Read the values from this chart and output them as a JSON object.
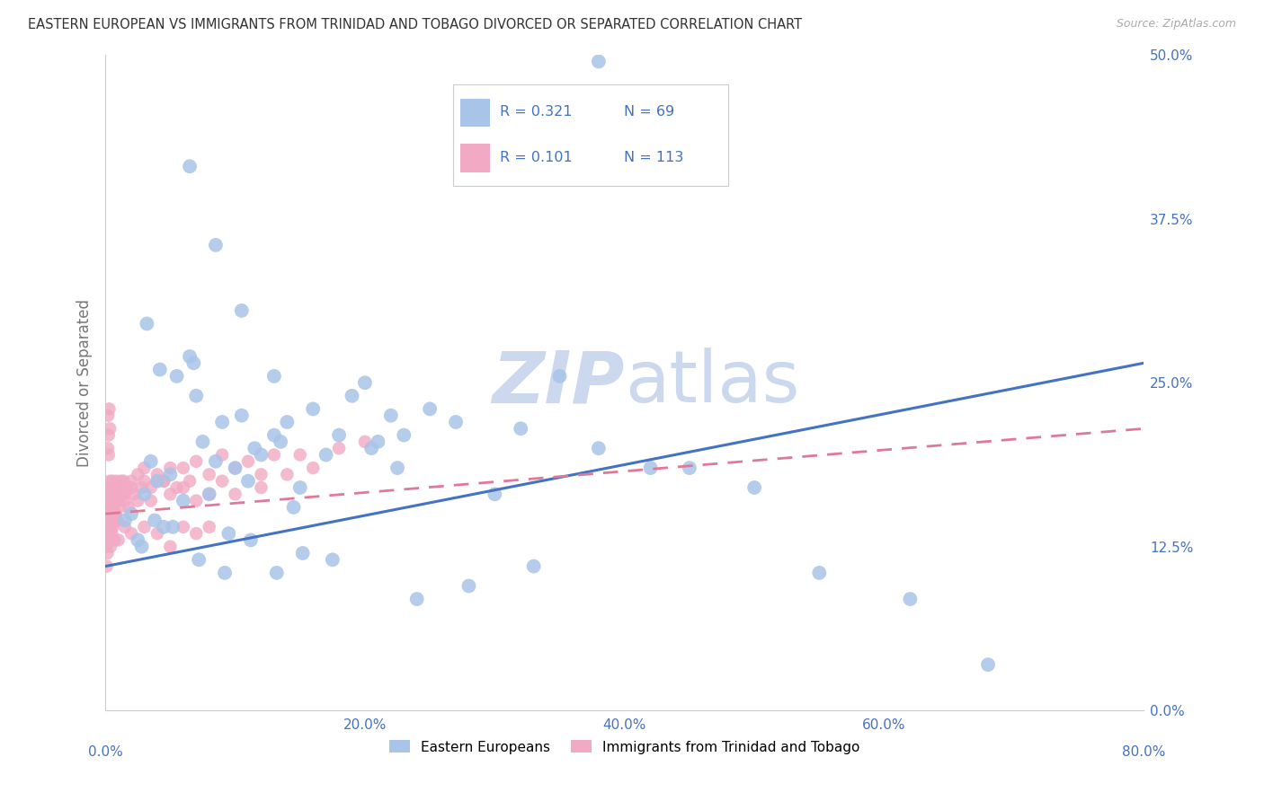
{
  "title": "EASTERN EUROPEAN VS IMMIGRANTS FROM TRINIDAD AND TOBAGO DIVORCED OR SEPARATED CORRELATION CHART",
  "source": "Source: ZipAtlas.com",
  "ylabel": "Divorced or Separated",
  "legend_blue_r": "0.321",
  "legend_blue_n": "69",
  "legend_pink_r": "0.101",
  "legend_pink_n": "113",
  "legend_blue_label": "Eastern Europeans",
  "legend_pink_label": "Immigrants from Trinidad and Tobago",
  "blue_color": "#a8c4e8",
  "pink_color": "#f2aac4",
  "blue_line_color": "#4472c4",
  "pink_line_color": "#e07898",
  "watermark_zip": "ZIP",
  "watermark_atlas": "atlas",
  "watermark_color": "#ccd8ee",
  "background_color": "#ffffff",
  "xlim": [
    0,
    80
  ],
  "ylim": [
    0,
    50
  ],
  "xticks": [
    0,
    20,
    40,
    60,
    80
  ],
  "yticks": [
    0,
    12.5,
    25.0,
    37.5,
    50.0
  ],
  "xtick_labels": [
    "0.0%",
    "20.0%",
    "40.0%",
    "60.0%",
    "80.0%"
  ],
  "ytick_labels": [
    "0.0%",
    "12.5%",
    "25.0%",
    "37.5%",
    "50.0%"
  ],
  "blue_trend_x0": 0,
  "blue_trend_y0": 11.0,
  "blue_trend_x1": 80,
  "blue_trend_y1": 26.5,
  "pink_trend_x0": 0,
  "pink_trend_y0": 15.0,
  "pink_trend_x1": 80,
  "pink_trend_y1": 21.5,
  "tick_color": "#4472c4",
  "grid_color": "#cccccc",
  "title_color": "#333333",
  "ylabel_color": "#777777",
  "title_fontsize": 10.5,
  "tick_fontsize": 11,
  "ylabel_fontsize": 12,
  "blue_x": [
    1.5,
    2.0,
    2.5,
    3.0,
    3.2,
    3.5,
    4.0,
    4.2,
    4.5,
    5.0,
    5.5,
    6.0,
    6.5,
    6.8,
    7.0,
    7.5,
    8.0,
    8.5,
    9.0,
    9.5,
    10.0,
    10.5,
    11.0,
    11.5,
    12.0,
    13.0,
    13.5,
    14.0,
    14.5,
    15.0,
    16.0,
    17.0,
    18.0,
    19.0,
    20.0,
    21.0,
    22.0,
    23.0,
    25.0,
    27.0,
    30.0,
    32.0,
    35.0,
    38.0,
    42.0,
    45.0,
    50.0,
    55.0,
    62.0,
    68.0,
    2.8,
    3.8,
    5.2,
    7.2,
    9.2,
    11.2,
    13.2,
    15.2,
    17.5,
    20.5,
    24.0,
    28.0,
    33.0,
    6.5,
    8.5,
    10.5,
    13.0,
    22.5,
    38.0
  ],
  "blue_y": [
    14.5,
    15.0,
    13.0,
    16.5,
    29.5,
    19.0,
    17.5,
    26.0,
    14.0,
    18.0,
    25.5,
    16.0,
    27.0,
    26.5,
    24.0,
    20.5,
    16.5,
    19.0,
    22.0,
    13.5,
    18.5,
    22.5,
    17.5,
    20.0,
    19.5,
    21.0,
    20.5,
    22.0,
    15.5,
    17.0,
    23.0,
    19.5,
    21.0,
    24.0,
    25.0,
    20.5,
    22.5,
    21.0,
    23.0,
    22.0,
    16.5,
    21.5,
    25.5,
    20.0,
    18.5,
    18.5,
    17.0,
    10.5,
    8.5,
    3.5,
    12.5,
    14.5,
    14.0,
    11.5,
    10.5,
    13.0,
    10.5,
    12.0,
    11.5,
    20.0,
    8.5,
    9.5,
    11.0,
    41.5,
    35.5,
    30.5,
    25.5,
    18.5,
    49.5
  ],
  "pink_x": [
    0.05,
    0.08,
    0.1,
    0.12,
    0.15,
    0.18,
    0.2,
    0.22,
    0.25,
    0.28,
    0.3,
    0.32,
    0.35,
    0.38,
    0.4,
    0.42,
    0.45,
    0.48,
    0.5,
    0.55,
    0.6,
    0.65,
    0.7,
    0.75,
    0.8,
    0.85,
    0.9,
    0.95,
    1.0,
    1.1,
    1.2,
    1.3,
    1.4,
    1.5,
    1.6,
    1.8,
    2.0,
    2.2,
    2.5,
    2.8,
    3.0,
    3.5,
    4.0,
    4.5,
    5.0,
    5.5,
    6.0,
    6.5,
    7.0,
    8.0,
    9.0,
    10.0,
    11.0,
    12.0,
    13.0,
    14.0,
    15.0,
    16.0,
    18.0,
    20.0,
    0.08,
    0.1,
    0.15,
    0.2,
    0.25,
    0.3,
    0.35,
    0.4,
    0.45,
    0.5,
    0.55,
    0.6,
    0.7,
    0.8,
    0.9,
    1.0,
    1.2,
    1.5,
    2.0,
    2.5,
    3.0,
    3.5,
    4.0,
    5.0,
    6.0,
    7.0,
    8.0,
    9.0,
    10.0,
    12.0,
    0.05,
    0.1,
    0.15,
    0.2,
    0.3,
    0.4,
    0.5,
    0.6,
    0.7,
    0.8,
    1.0,
    1.5,
    2.0,
    3.0,
    4.0,
    5.0,
    6.0,
    7.0,
    8.0,
    4.5,
    0.25,
    0.18,
    0.35
  ],
  "pink_y": [
    15.5,
    14.0,
    16.5,
    13.5,
    17.0,
    15.0,
    14.5,
    16.0,
    13.0,
    15.5,
    16.5,
    14.5,
    17.5,
    15.5,
    16.0,
    14.0,
    17.0,
    15.0,
    16.5,
    17.5,
    15.5,
    16.5,
    17.0,
    15.0,
    16.0,
    17.5,
    14.5,
    16.0,
    17.0,
    15.5,
    17.0,
    16.5,
    17.5,
    16.0,
    17.0,
    15.5,
    17.5,
    16.5,
    18.0,
    17.0,
    18.5,
    17.0,
    18.0,
    17.5,
    18.5,
    17.0,
    18.5,
    17.5,
    19.0,
    18.0,
    19.5,
    18.5,
    19.0,
    18.0,
    19.5,
    18.0,
    19.5,
    18.5,
    20.0,
    20.5,
    14.5,
    13.0,
    15.0,
    22.5,
    21.0,
    23.0,
    14.0,
    15.5,
    16.0,
    14.5,
    17.0,
    15.5,
    16.5,
    15.0,
    17.0,
    16.0,
    17.5,
    16.5,
    17.0,
    16.0,
    17.5,
    16.0,
    17.5,
    16.5,
    17.0,
    16.0,
    16.5,
    17.5,
    16.5,
    17.0,
    12.5,
    11.0,
    12.0,
    13.5,
    14.0,
    12.5,
    13.5,
    14.0,
    13.0,
    14.5,
    13.0,
    14.0,
    13.5,
    14.0,
    13.5,
    12.5,
    14.0,
    13.5,
    14.0,
    17.5,
    19.5,
    20.0,
    21.5
  ]
}
